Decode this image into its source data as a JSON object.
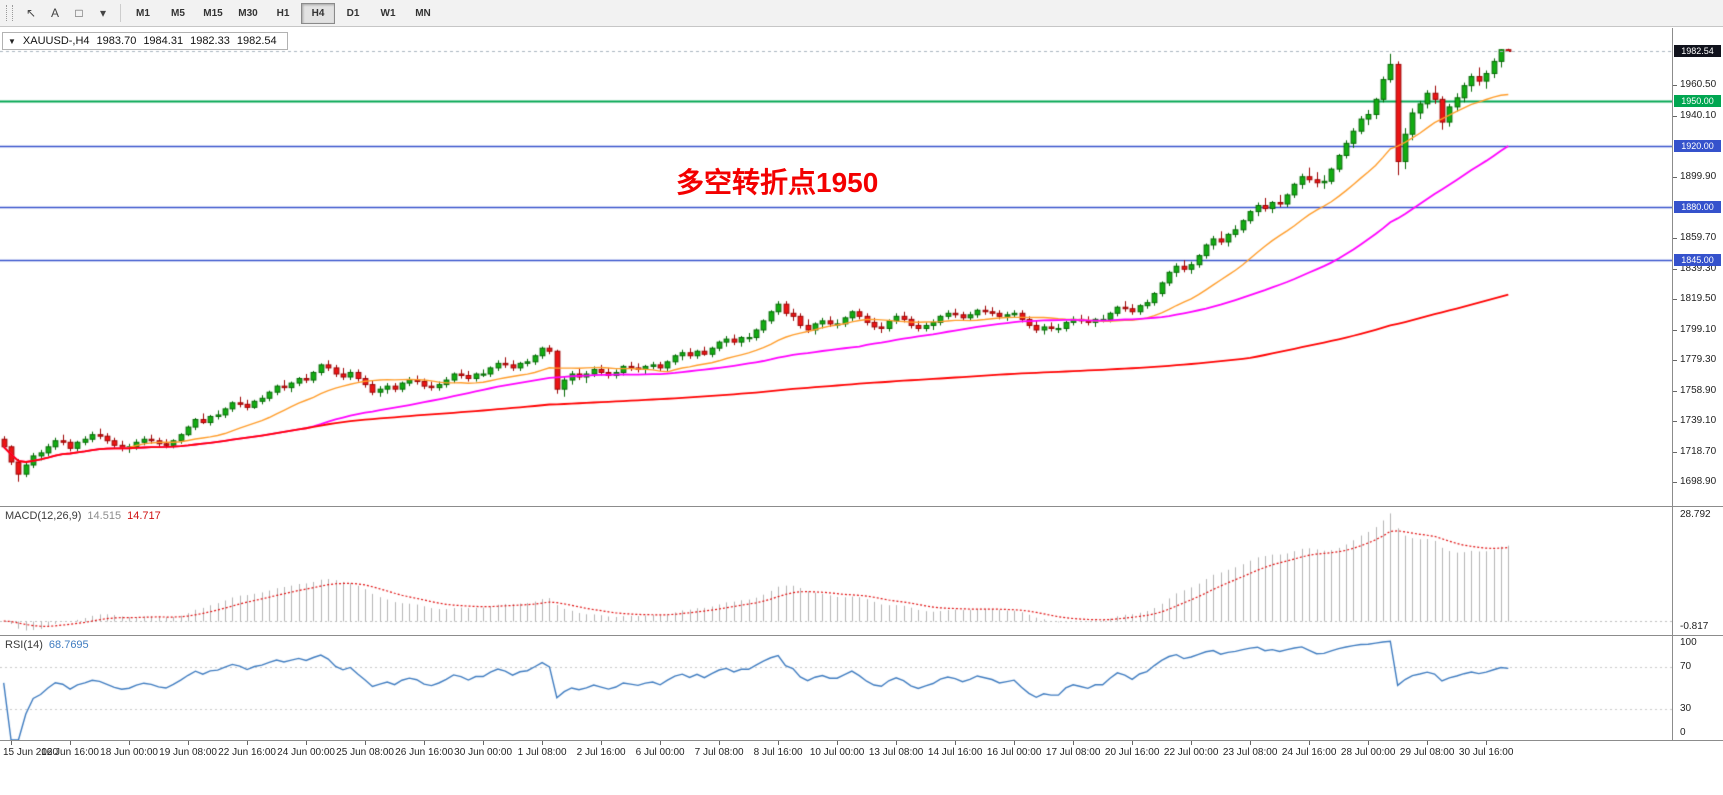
{
  "toolbar": {
    "tools": [
      {
        "name": "cursor-tool-icon",
        "glyph": "↖"
      },
      {
        "name": "text-tool-icon",
        "glyph": "A"
      },
      {
        "name": "shapes-tool-icon",
        "glyph": "□"
      },
      {
        "name": "tools-dropdown-icon",
        "glyph": "▾"
      }
    ],
    "timeframes": [
      "M1",
      "M5",
      "M15",
      "M30",
      "H1",
      "H4",
      "D1",
      "W1",
      "MN"
    ],
    "active_timeframe": "H4"
  },
  "title": {
    "collapse_glyph": "▼",
    "symbol": "XAUUSD-,H4",
    "open": "1983.70",
    "high": "1984.31",
    "low": "1982.33",
    "close": "1982.54"
  },
  "annotation": {
    "text": "多空转折点1950",
    "color": "#f30000"
  },
  "price_axis": {
    "current": {
      "value": "1982.54",
      "bg": "#10121c"
    },
    "ticks": [
      "1960.50",
      "1940.10",
      "1899.90",
      "1859.70",
      "1839.30",
      "1819.50",
      "1799.10",
      "1779.30",
      "1758.90",
      "1739.10",
      "1718.70",
      "1698.90"
    ],
    "levels": [
      {
        "label": "1950.00",
        "price": 1950.0,
        "color": "#00a651"
      },
      {
        "label": "1920.00",
        "price": 1920.0,
        "color": "#3552cc"
      },
      {
        "label": "1880.00",
        "price": 1880.0,
        "color": "#3552cc"
      },
      {
        "label": "1845.00",
        "price": 1845.0,
        "color": "#3552cc"
      }
    ]
  },
  "macd_panel": {
    "title": "MACD(12,26,9)",
    "value_main": "14.515",
    "value_signal": "14.717",
    "scale_max": "28.792",
    "scale_min": "-0.817",
    "params": {
      "fast": 12,
      "slow": 26,
      "signal": 9
    },
    "colors": {
      "histogram": "#b4b4b4",
      "signal": "#e01010"
    }
  },
  "rsi_panel": {
    "title": "RSI(14)",
    "value": "68.7695",
    "period": 14,
    "scale": [
      "100",
      "70",
      "30",
      "0"
    ],
    "levels": [
      70,
      30
    ],
    "color": "#3f7cc0"
  },
  "chart_data": {
    "type": "candlestick",
    "symbol": "XAUUSD",
    "timeframe": "H4",
    "title": "XAUUSD-,H4 1983.70 1984.31 1982.33 1982.54",
    "ylim": [
      1683,
      1998
    ],
    "last_price": 1982.54,
    "up_color": "#12ac12",
    "up_border": "#056a05",
    "down_color": "#ec1414",
    "down_border": "#9c0404",
    "hlines": [
      {
        "price": 1950.0,
        "color": "#00a651",
        "width": 2
      },
      {
        "price": 1920.0,
        "color": "#3552cc",
        "width": 1.4
      },
      {
        "price": 1880.0,
        "color": "#3552cc",
        "width": 1.4
      },
      {
        "price": 1845.0,
        "color": "#3552cc",
        "width": 1.4
      }
    ],
    "overlays": [
      {
        "name": "ma-fast",
        "type": "sma",
        "period": 16,
        "color": "#ff9d2b",
        "width": 1.4
      },
      {
        "name": "ma-mid",
        "type": "sma",
        "period": 42,
        "color": "#ff00ff",
        "width": 1.8
      },
      {
        "name": "ma-slow",
        "type": "sma",
        "period": 170,
        "color": "#ff0000",
        "width": 1.8
      }
    ],
    "x_labels": [
      "15 Jun 2020",
      "16 Jun 16:00",
      "18 Jun 00:00",
      "19 Jun 08:00",
      "22 Jun 16:00",
      "24 Jun 00:00",
      "25 Jun 08:00",
      "26 Jun 16:00",
      "30 Jun 00:00",
      "1 Jul 08:00",
      "2 Jul 16:00",
      "6 Jul 00:00",
      "7 Jul 08:00",
      "8 Jul 16:00",
      "10 Jul 00:00",
      "13 Jul 08:00",
      "14 Jul 16:00",
      "16 Jul 00:00",
      "17 Jul 08:00",
      "20 Jul 16:00",
      "22 Jul 00:00",
      "23 Jul 08:00",
      "24 Jul 16:00",
      "28 Jul 00:00",
      "29 Jul 08:00",
      "30 Jul 16:00"
    ],
    "candles": [
      [
        1727,
        1729,
        1721,
        1722
      ],
      [
        1722,
        1723,
        1710,
        1712
      ],
      [
        1712,
        1714,
        1699,
        1704
      ],
      [
        1704,
        1712,
        1702,
        1710
      ],
      [
        1710,
        1718,
        1708,
        1716
      ],
      [
        1716,
        1720,
        1713,
        1718
      ],
      [
        1718,
        1724,
        1716,
        1722
      ],
      [
        1722,
        1728,
        1720,
        1726
      ],
      [
        1726,
        1730,
        1723,
        1725
      ],
      [
        1725,
        1727,
        1719,
        1721
      ],
      [
        1721,
        1726,
        1719,
        1725
      ],
      [
        1725,
        1729,
        1723,
        1727
      ],
      [
        1727,
        1732,
        1725,
        1730
      ],
      [
        1730,
        1734,
        1727,
        1729
      ],
      [
        1729,
        1731,
        1724,
        1726
      ],
      [
        1726,
        1728,
        1721,
        1723
      ],
      [
        1723,
        1726,
        1719,
        1721
      ],
      [
        1721,
        1724,
        1718,
        1722
      ],
      [
        1722,
        1727,
        1720,
        1725
      ],
      [
        1725,
        1729,
        1723,
        1727
      ],
      [
        1727,
        1730,
        1724,
        1726
      ],
      [
        1726,
        1728,
        1722,
        1724
      ],
      [
        1724,
        1727,
        1721,
        1723
      ],
      [
        1723,
        1727,
        1721,
        1726
      ],
      [
        1726,
        1731,
        1724,
        1730
      ],
      [
        1730,
        1736,
        1729,
        1735
      ],
      [
        1735,
        1741,
        1733,
        1740
      ],
      [
        1740,
        1744,
        1737,
        1738
      ],
      [
        1738,
        1743,
        1736,
        1742
      ],
      [
        1742,
        1746,
        1740,
        1743
      ],
      [
        1743,
        1748,
        1741,
        1747
      ],
      [
        1747,
        1752,
        1745,
        1751
      ],
      [
        1751,
        1755,
        1748,
        1750
      ],
      [
        1750,
        1753,
        1746,
        1748
      ],
      [
        1748,
        1753,
        1747,
        1752
      ],
      [
        1752,
        1756,
        1750,
        1754
      ],
      [
        1754,
        1759,
        1752,
        1758
      ],
      [
        1758,
        1763,
        1756,
        1762
      ],
      [
        1762,
        1766,
        1759,
        1761
      ],
      [
        1761,
        1765,
        1758,
        1764
      ],
      [
        1764,
        1768,
        1762,
        1767
      ],
      [
        1767,
        1770,
        1764,
        1766
      ],
      [
        1766,
        1772,
        1764,
        1771
      ],
      [
        1771,
        1777,
        1769,
        1776
      ],
      [
        1776,
        1779,
        1772,
        1774
      ],
      [
        1774,
        1776,
        1768,
        1770
      ],
      [
        1770,
        1774,
        1766,
        1768
      ],
      [
        1768,
        1773,
        1766,
        1771
      ],
      [
        1771,
        1773,
        1765,
        1767
      ],
      [
        1767,
        1769,
        1761,
        1763
      ],
      [
        1763,
        1766,
        1756,
        1758
      ],
      [
        1758,
        1762,
        1755,
        1760
      ],
      [
        1760,
        1764,
        1757,
        1762
      ],
      [
        1762,
        1764,
        1758,
        1760
      ],
      [
        1760,
        1765,
        1758,
        1764
      ],
      [
        1764,
        1768,
        1762,
        1766
      ],
      [
        1766,
        1769,
        1763,
        1765
      ],
      [
        1765,
        1767,
        1760,
        1762
      ],
      [
        1762,
        1765,
        1759,
        1761
      ],
      [
        1761,
        1765,
        1759,
        1763
      ],
      [
        1763,
        1768,
        1761,
        1766
      ],
      [
        1766,
        1771,
        1764,
        1770
      ],
      [
        1770,
        1773,
        1767,
        1769
      ],
      [
        1769,
        1772,
        1765,
        1767
      ],
      [
        1767,
        1771,
        1765,
        1770
      ],
      [
        1770,
        1773,
        1768,
        1770
      ],
      [
        1770,
        1775,
        1768,
        1774
      ],
      [
        1774,
        1779,
        1772,
        1777
      ],
      [
        1777,
        1781,
        1774,
        1776
      ],
      [
        1776,
        1779,
        1772,
        1774
      ],
      [
        1774,
        1778,
        1772,
        1777
      ],
      [
        1777,
        1780,
        1775,
        1778
      ],
      [
        1778,
        1783,
        1776,
        1782
      ],
      [
        1782,
        1788,
        1780,
        1787
      ],
      [
        1787,
        1789,
        1783,
        1785
      ],
      [
        1785,
        1786,
        1757,
        1760
      ],
      [
        1760,
        1768,
        1755,
        1766
      ],
      [
        1766,
        1772,
        1763,
        1770
      ],
      [
        1770,
        1774,
        1766,
        1768
      ],
      [
        1768,
        1772,
        1764,
        1770
      ],
      [
        1770,
        1775,
        1768,
        1773
      ],
      [
        1773,
        1776,
        1769,
        1771
      ],
      [
        1771,
        1774,
        1767,
        1769
      ],
      [
        1769,
        1773,
        1767,
        1771
      ],
      [
        1771,
        1776,
        1769,
        1775
      ],
      [
        1775,
        1778,
        1772,
        1774
      ],
      [
        1774,
        1777,
        1771,
        1773
      ],
      [
        1773,
        1776,
        1770,
        1775
      ],
      [
        1775,
        1778,
        1773,
        1776
      ],
      [
        1776,
        1778,
        1772,
        1774
      ],
      [
        1774,
        1779,
        1772,
        1778
      ],
      [
        1778,
        1783,
        1776,
        1782
      ],
      [
        1782,
        1786,
        1779,
        1784
      ],
      [
        1784,
        1787,
        1780,
        1782
      ],
      [
        1782,
        1786,
        1780,
        1785
      ],
      [
        1785,
        1788,
        1782,
        1783
      ],
      [
        1783,
        1788,
        1781,
        1787
      ],
      [
        1787,
        1792,
        1785,
        1791
      ],
      [
        1791,
        1795,
        1788,
        1793
      ],
      [
        1793,
        1796,
        1789,
        1791
      ],
      [
        1791,
        1795,
        1788,
        1794
      ],
      [
        1794,
        1797,
        1791,
        1794
      ],
      [
        1794,
        1800,
        1792,
        1799
      ],
      [
        1799,
        1806,
        1797,
        1805
      ],
      [
        1805,
        1812,
        1803,
        1811
      ],
      [
        1811,
        1818,
        1809,
        1816
      ],
      [
        1816,
        1818,
        1808,
        1810
      ],
      [
        1810,
        1813,
        1805,
        1808
      ],
      [
        1808,
        1810,
        1800,
        1802
      ],
      [
        1802,
        1806,
        1797,
        1799
      ],
      [
        1799,
        1804,
        1796,
        1803
      ],
      [
        1803,
        1807,
        1800,
        1805
      ],
      [
        1805,
        1808,
        1801,
        1803
      ],
      [
        1803,
        1806,
        1800,
        1803
      ],
      [
        1803,
        1808,
        1801,
        1807
      ],
      [
        1807,
        1812,
        1805,
        1811
      ],
      [
        1811,
        1813,
        1806,
        1808
      ],
      [
        1808,
        1810,
        1802,
        1804
      ],
      [
        1804,
        1807,
        1799,
        1801
      ],
      [
        1801,
        1804,
        1797,
        1800
      ],
      [
        1800,
        1806,
        1798,
        1805
      ],
      [
        1805,
        1810,
        1803,
        1808
      ],
      [
        1808,
        1811,
        1804,
        1806
      ],
      [
        1806,
        1808,
        1800,
        1802
      ],
      [
        1802,
        1805,
        1798,
        1800
      ],
      [
        1800,
        1804,
        1798,
        1802
      ],
      [
        1802,
        1806,
        1799,
        1804
      ],
      [
        1804,
        1809,
        1802,
        1808
      ],
      [
        1808,
        1812,
        1806,
        1810
      ],
      [
        1810,
        1813,
        1807,
        1809
      ],
      [
        1809,
        1811,
        1805,
        1807
      ],
      [
        1807,
        1811,
        1805,
        1809
      ],
      [
        1809,
        1813,
        1807,
        1812
      ],
      [
        1812,
        1815,
        1809,
        1811
      ],
      [
        1811,
        1814,
        1808,
        1810
      ],
      [
        1810,
        1812,
        1806,
        1808
      ],
      [
        1808,
        1811,
        1805,
        1809
      ],
      [
        1809,
        1812,
        1807,
        1810
      ],
      [
        1810,
        1812,
        1804,
        1806
      ],
      [
        1806,
        1808,
        1800,
        1802
      ],
      [
        1802,
        1805,
        1797,
        1799
      ],
      [
        1799,
        1803,
        1796,
        1801
      ],
      [
        1801,
        1804,
        1798,
        1800
      ],
      [
        1800,
        1803,
        1797,
        1800
      ],
      [
        1800,
        1805,
        1798,
        1804
      ],
      [
        1804,
        1808,
        1802,
        1806
      ],
      [
        1806,
        1809,
        1803,
        1805
      ],
      [
        1805,
        1808,
        1802,
        1804
      ],
      [
        1804,
        1807,
        1801,
        1806
      ],
      [
        1806,
        1809,
        1804,
        1806
      ],
      [
        1806,
        1811,
        1804,
        1810
      ],
      [
        1810,
        1815,
        1808,
        1814
      ],
      [
        1814,
        1818,
        1811,
        1813
      ],
      [
        1813,
        1816,
        1809,
        1811
      ],
      [
        1811,
        1816,
        1809,
        1815
      ],
      [
        1815,
        1819,
        1813,
        1817
      ],
      [
        1817,
        1824,
        1815,
        1823
      ],
      [
        1823,
        1831,
        1821,
        1830
      ],
      [
        1830,
        1838,
        1828,
        1837
      ],
      [
        1837,
        1843,
        1834,
        1841
      ],
      [
        1841,
        1845,
        1837,
        1839
      ],
      [
        1839,
        1844,
        1836,
        1842
      ],
      [
        1842,
        1849,
        1840,
        1848
      ],
      [
        1848,
        1856,
        1846,
        1855
      ],
      [
        1855,
        1861,
        1852,
        1859
      ],
      [
        1859,
        1864,
        1855,
        1857
      ],
      [
        1857,
        1863,
        1854,
        1862
      ],
      [
        1862,
        1868,
        1860,
        1865
      ],
      [
        1865,
        1872,
        1863,
        1871
      ],
      [
        1871,
        1878,
        1869,
        1877
      ],
      [
        1877,
        1883,
        1874,
        1881
      ],
      [
        1881,
        1886,
        1877,
        1879
      ],
      [
        1879,
        1884,
        1876,
        1883
      ],
      [
        1883,
        1888,
        1880,
        1882
      ],
      [
        1882,
        1889,
        1880,
        1888
      ],
      [
        1888,
        1896,
        1886,
        1895
      ],
      [
        1895,
        1902,
        1892,
        1900
      ],
      [
        1900,
        1906,
        1896,
        1898
      ],
      [
        1898,
        1903,
        1893,
        1896
      ],
      [
        1896,
        1901,
        1892,
        1897
      ],
      [
        1897,
        1906,
        1895,
        1905
      ],
      [
        1905,
        1915,
        1903,
        1914
      ],
      [
        1914,
        1924,
        1912,
        1922
      ],
      [
        1922,
        1932,
        1919,
        1930
      ],
      [
        1930,
        1940,
        1928,
        1938
      ],
      [
        1938,
        1944,
        1934,
        1941
      ],
      [
        1941,
        1952,
        1938,
        1951
      ],
      [
        1951,
        1966,
        1949,
        1964
      ],
      [
        1964,
        1981,
        1962,
        1974
      ],
      [
        1974,
        1976,
        1901,
        1910
      ],
      [
        1910,
        1932,
        1905,
        1928
      ],
      [
        1928,
        1945,
        1924,
        1942
      ],
      [
        1942,
        1950,
        1938,
        1948
      ],
      [
        1948,
        1957,
        1945,
        1955
      ],
      [
        1955,
        1960,
        1948,
        1951
      ],
      [
        1951,
        1953,
        1931,
        1936
      ],
      [
        1936,
        1948,
        1933,
        1946
      ],
      [
        1946,
        1955,
        1943,
        1952
      ],
      [
        1952,
        1962,
        1949,
        1960
      ],
      [
        1960,
        1968,
        1956,
        1966
      ],
      [
        1966,
        1972,
        1960,
        1963
      ],
      [
        1963,
        1970,
        1958,
        1968
      ],
      [
        1968,
        1978,
        1965,
        1976
      ],
      [
        1976,
        1984,
        1972,
        1983.7
      ],
      [
        1983.7,
        1984.31,
        1982.33,
        1982.54
      ]
    ]
  }
}
